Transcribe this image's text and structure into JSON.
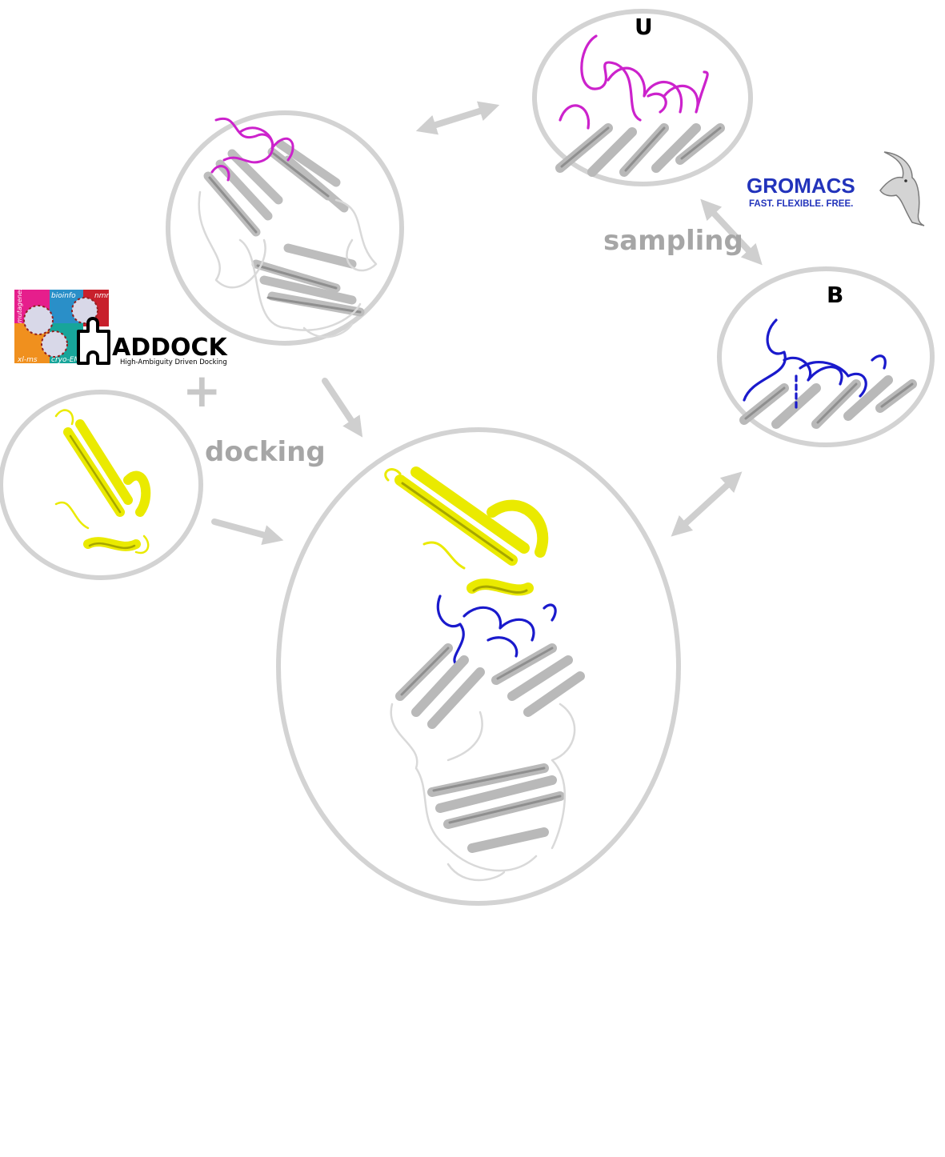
{
  "labels": {
    "sampling": "sampling",
    "docking": "docking",
    "unbound": "U",
    "bound": "B",
    "plus": "+"
  },
  "haddock": {
    "name": "ADDOCK",
    "tagline": "High-Ambiguity Driven Docking",
    "tiles": [
      "bioinfo",
      "nmr",
      "mutagenesis",
      "xl-ms",
      "cryo-EM"
    ]
  },
  "gromacs": {
    "name": "GROMACS",
    "tagline": "FAST. FLEXIBLE. FREE."
  },
  "colors": {
    "ring": "#d3d3d3",
    "arrow": "#cfcfcf",
    "label": "#a6a6a6",
    "unbound_loops": "#cc22cc",
    "bound_loops": "#1a1acc",
    "ligand": "#eaea00",
    "receptor": "#bdbdbd",
    "gromacs_text": "#2233bb"
  }
}
